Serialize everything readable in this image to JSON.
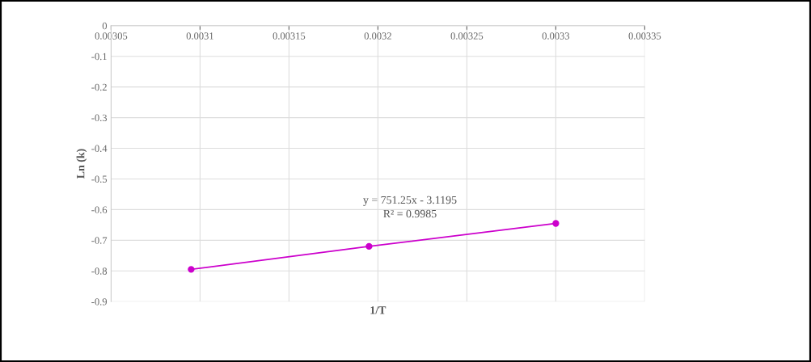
{
  "chart_data": {
    "type": "line",
    "xlabel": "1/T",
    "ylabel": "Ln (k)",
    "x": [
      0.003095,
      0.003195,
      0.0033
    ],
    "series": [
      {
        "color": "#cc00cc",
        "values": [
          -0.795,
          -0.72,
          -0.645
        ]
      }
    ],
    "xlim": [
      0.00305,
      0.00335
    ],
    "xticks": [
      0.00305,
      0.0031,
      0.00315,
      0.0032,
      0.00325,
      0.0033,
      0.00335
    ],
    "ylim": [
      -0.9,
      0
    ],
    "yticks": [
      0,
      -0.1,
      -0.2,
      -0.3,
      -0.4,
      -0.5,
      -0.6,
      -0.7,
      -0.8,
      -0.9
    ],
    "grid": true,
    "marker": "circle",
    "line_style": "solid",
    "annotations": [
      "y = 751.25x - 3.1195",
      "R² = 0.9985"
    ]
  }
}
